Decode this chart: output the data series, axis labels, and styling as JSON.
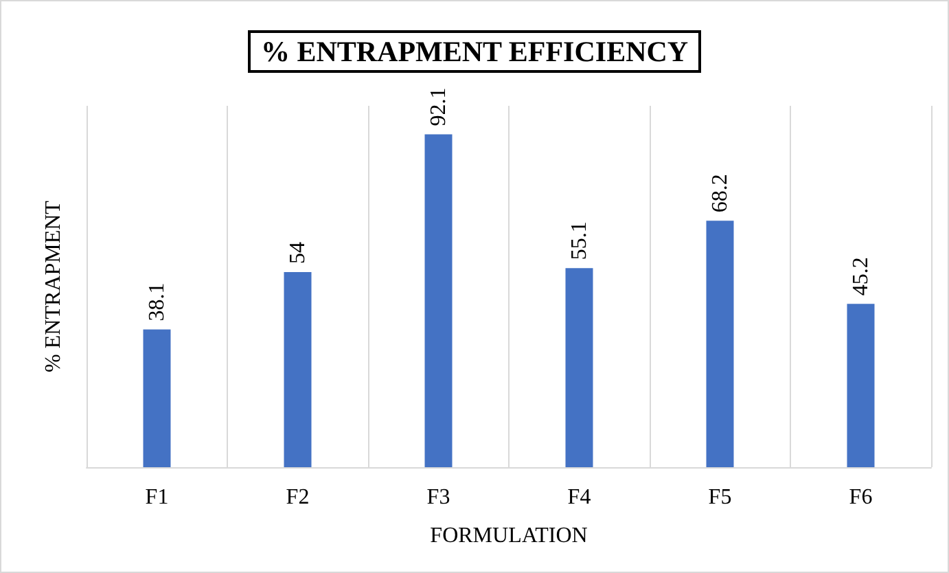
{
  "chart_data": {
    "type": "bar",
    "title": "% ENTRAPMENT EFFICIENCY",
    "xlabel": "FORMULATION",
    "ylabel": "% ENTRAPMENT",
    "categories": [
      "F1",
      "F2",
      "F3",
      "F4",
      "F5",
      "F6"
    ],
    "values": [
      38.1,
      54,
      92.1,
      55.1,
      68.2,
      45.2
    ],
    "color": "#4472c4",
    "data_labels": true,
    "grid": "x"
  }
}
